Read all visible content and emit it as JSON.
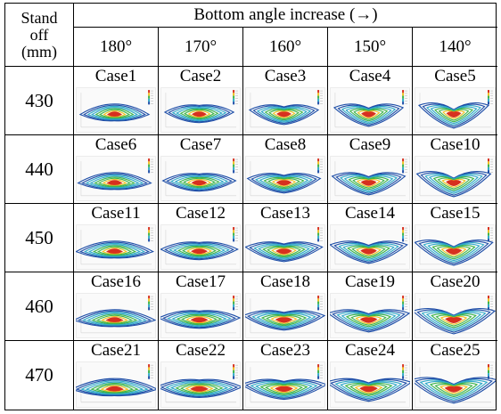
{
  "header": {
    "stand_off": "Stand\noff\n(mm)",
    "group_label": "Bottom angle increase (→)",
    "angles": [
      "180°",
      "170°",
      "160°",
      "150°",
      "140°"
    ]
  },
  "rows": [
    {
      "standoff": "430",
      "cases": [
        "Case1",
        "Case2",
        "Case3",
        "Case4",
        "Case5"
      ]
    },
    {
      "standoff": "440",
      "cases": [
        "Case6",
        "Case7",
        "Case8",
        "Case9",
        "Case10"
      ]
    },
    {
      "standoff": "450",
      "cases": [
        "Case11",
        "Case12",
        "Case13",
        "Case14",
        "Case15"
      ]
    },
    {
      "standoff": "460",
      "cases": [
        "Case16",
        "Case17",
        "Case18",
        "Case19",
        "Case20"
      ]
    },
    {
      "standoff": "470",
      "cases": [
        "Case21",
        "Case22",
        "Case23",
        "Case24",
        "Case25"
      ]
    }
  ],
  "colors": {
    "hot": "#d7301f",
    "mid": "#f0c020",
    "green": "#3cb44b",
    "cyan": "#2fa8c8",
    "cold": "#1f4fa8"
  }
}
